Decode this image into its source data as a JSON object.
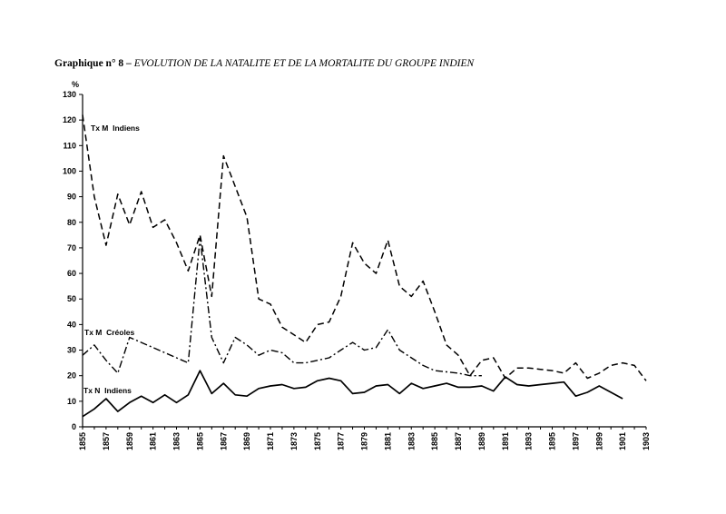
{
  "title": {
    "lead": "Graphique n° 8 –",
    "rest": "EVOLUTION DE LA NATALITE ET DE LA MORTALITE DU GROUPE INDIEN"
  },
  "chart_data": {
    "type": "line",
    "ylabel": "%",
    "ylim": [
      0,
      130
    ],
    "yticks": [
      0,
      10,
      20,
      30,
      40,
      50,
      60,
      70,
      80,
      90,
      100,
      110,
      120,
      130
    ],
    "xlim": [
      1855,
      1903
    ],
    "xticks": [
      1855,
      1857,
      1859,
      1861,
      1863,
      1865,
      1867,
      1869,
      1871,
      1873,
      1875,
      1877,
      1879,
      1881,
      1883,
      1885,
      1887,
      1889,
      1891,
      1893,
      1895,
      1897,
      1899,
      1901,
      1903
    ],
    "grid": false,
    "legend": "inline labels",
    "series": [
      {
        "name": "Tx M  Indiens",
        "style": "dashed",
        "x": [
          1855,
          1856,
          1857,
          1858,
          1859,
          1860,
          1861,
          1862,
          1863,
          1864,
          1865,
          1866,
          1867,
          1868,
          1869,
          1870,
          1871,
          1872,
          1873,
          1874,
          1875,
          1876,
          1877,
          1878,
          1879,
          1880,
          1881,
          1882,
          1883,
          1884,
          1885,
          1886,
          1887,
          1888,
          1889,
          1890,
          1891,
          1892,
          1893,
          1894,
          1895,
          1896,
          1897,
          1898,
          1899,
          1900,
          1901,
          1902,
          1903
        ],
        "values": [
          122,
          90,
          71,
          91,
          79,
          92,
          78,
          81,
          72,
          61,
          75,
          51,
          106,
          94,
          82,
          50,
          48,
          39,
          36,
          33,
          40,
          41,
          51,
          72,
          64,
          60,
          73,
          55,
          51,
          57,
          45,
          32,
          28,
          20,
          26,
          27,
          19,
          23,
          23,
          22.5,
          22,
          21,
          25,
          19,
          21,
          24,
          25,
          24,
          18
        ]
      },
      {
        "name": "Tx M  Créoles",
        "style": "dash-dot",
        "x": [
          1855,
          1856,
          1857,
          1858,
          1859,
          1860,
          1861,
          1862,
          1863,
          1864,
          1865,
          1866,
          1867,
          1868,
          1869,
          1870,
          1871,
          1872,
          1873,
          1874,
          1875,
          1876,
          1877,
          1878,
          1879,
          1880,
          1881,
          1882,
          1883,
          1884,
          1885,
          1886,
          1887,
          1888,
          1889
        ],
        "values": [
          28,
          32,
          26,
          21,
          35,
          33,
          31,
          29,
          27,
          25,
          74,
          35,
          25,
          35,
          32,
          28,
          30,
          29,
          25,
          25,
          26,
          27,
          30,
          33,
          30,
          31,
          38,
          30,
          27,
          24,
          22,
          21.5,
          21,
          20,
          20
        ]
      },
      {
        "name": "Tx N  Indiens",
        "style": "solid",
        "x": [
          1855,
          1856,
          1857,
          1858,
          1859,
          1860,
          1861,
          1862,
          1863,
          1864,
          1865,
          1866,
          1867,
          1868,
          1869,
          1870,
          1871,
          1872,
          1873,
          1874,
          1875,
          1876,
          1877,
          1878,
          1879,
          1880,
          1881,
          1882,
          1883,
          1884,
          1885,
          1886,
          1887,
          1888,
          1889,
          1890,
          1891,
          1892,
          1893,
          1894,
          1895,
          1896,
          1897,
          1898,
          1899,
          1900,
          1901
        ],
        "values": [
          4,
          7,
          11,
          6,
          9.5,
          12,
          9.5,
          12.5,
          9.5,
          12.5,
          22,
          13,
          17,
          12.5,
          12,
          15,
          16,
          16.5,
          15,
          15.5,
          18,
          19,
          18,
          13,
          13.5,
          16,
          16.5,
          13,
          17,
          15,
          16,
          17,
          15.5,
          15.5,
          16,
          14,
          19.5,
          16.5,
          16,
          16.5,
          17,
          17.5,
          12,
          13.5,
          16,
          13.5,
          11
        ]
      }
    ]
  }
}
